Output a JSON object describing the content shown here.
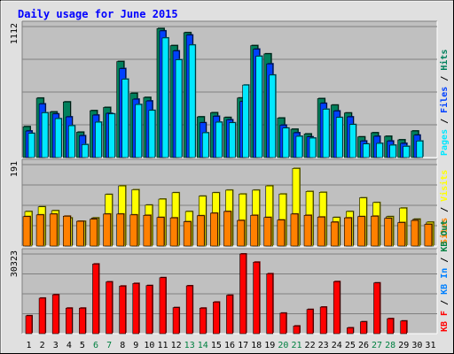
{
  "chart_data": {
    "type": "bar",
    "title": "Daily usage for June 2015",
    "colors": {
      "frame_bg": "#e0e0e0",
      "plot_bg": "#c0c0c0",
      "title": "#0000ff",
      "text": "#000000",
      "weekend": "#008040",
      "hits": "#00805c",
      "files": "#0040ff",
      "pages": "#00e8ff",
      "visits": "#ffff00",
      "sites": "#ff8000",
      "kbf": "#ff0000",
      "kbin": "#0080ff",
      "kbout": "#008040"
    },
    "days": [
      "1",
      "2",
      "3",
      "4",
      "5",
      "6",
      "7",
      "8",
      "9",
      "10",
      "11",
      "12",
      "13",
      "14",
      "15",
      "16",
      "17",
      "18",
      "19",
      "20",
      "21",
      "22",
      "23",
      "24",
      "25",
      "26",
      "27",
      "28",
      "29",
      "30",
      "31"
    ],
    "weekend_days": [
      "6",
      "7",
      "13",
      "14",
      "20",
      "21",
      "27",
      "28"
    ],
    "panels": [
      {
        "name": "top",
        "ymax": 1112,
        "ymax_label": "1112",
        "right_labels": [
          {
            "text": "Pages",
            "color_key": "pages"
          },
          {
            "text": " / ",
            "color_key": "text"
          },
          {
            "text": "Files",
            "color_key": "files"
          },
          {
            "text": " / ",
            "color_key": "text"
          },
          {
            "text": "Hits",
            "color_key": "hits"
          }
        ],
        "series": [
          {
            "key": "hits",
            "values": [
              262,
              504,
              387,
              472,
              215,
              398,
              425,
              815,
              545,
              510,
              1095,
              950,
              1060,
              345,
              380,
              340,
              505,
              950,
              880,
              335,
              240,
              200,
              500,
              445,
              378,
              175,
              210,
              180,
              150,
              225,
              0
            ]
          },
          {
            "key": "files",
            "values": [
              225,
              455,
              370,
              345,
              185,
              360,
              375,
              755,
              495,
              480,
              1075,
              905,
              1040,
              295,
              350,
              320,
              475,
              920,
              795,
              275,
              210,
              175,
              460,
              395,
              345,
              140,
              180,
              140,
              120,
              190,
              0
            ]
          },
          {
            "key": "pages",
            "values": [
              205,
              380,
              330,
              270,
              110,
              300,
              370,
              665,
              450,
              400,
              1015,
              830,
              955,
              210,
              300,
              295,
              615,
              860,
              700,
              250,
              180,
              165,
              410,
              340,
              280,
              115,
              120,
              105,
              95,
              140,
              0
            ]
          }
        ]
      },
      {
        "name": "middle",
        "ymax": 191,
        "ymax_label": "191",
        "right_labels": [
          {
            "text": "Sites",
            "color_key": "sites"
          },
          {
            "text": " / ",
            "color_key": "text"
          },
          {
            "text": "Visits",
            "color_key": "visits"
          }
        ],
        "series": [
          {
            "key": "visits",
            "values": [
              81,
              92,
              83,
              66,
              58,
              66,
              121,
              141,
              132,
              96,
              110,
              125,
              81,
              117,
              125,
              131,
              122,
              131,
              141,
              122,
              182,
              128,
              126,
              67,
              81,
              113,
              102,
              69,
              89,
              63,
              56
            ]
          },
          {
            "key": "sites",
            "values": [
              69,
              73,
              75,
              70,
              58,
              63,
              75,
              75,
              73,
              72,
              67,
              66,
              57,
              71,
              77,
              81,
              60,
              72,
              67,
              61,
              75,
              72,
              68,
              56,
              66,
              69,
              70,
              65,
              55,
              60,
              51
            ]
          }
        ]
      },
      {
        "name": "bottom",
        "ymax": 30323,
        "ymax_label": "30323",
        "right_labels": [
          {
            "text": "KB F",
            "color_key": "kbf"
          },
          {
            "text": " / ",
            "color_key": "text"
          },
          {
            "text": "KB In",
            "color_key": "kbin"
          },
          {
            "text": " / ",
            "color_key": "text"
          },
          {
            "text": "KB Out",
            "color_key": "kbout"
          }
        ],
        "series": [
          {
            "key": "kbf",
            "values": [
              6800,
              13500,
              14800,
              9700,
              9700,
              26500,
              19700,
              18100,
              19100,
              18300,
              21300,
              9900,
              18200,
              9700,
              12000,
              14600,
              30323,
              27200,
              22800,
              7800,
              2900,
              9200,
              10100,
              19800,
              2200,
              4500,
              19300,
              5700,
              4800,
              0,
              0
            ]
          }
        ]
      }
    ]
  }
}
